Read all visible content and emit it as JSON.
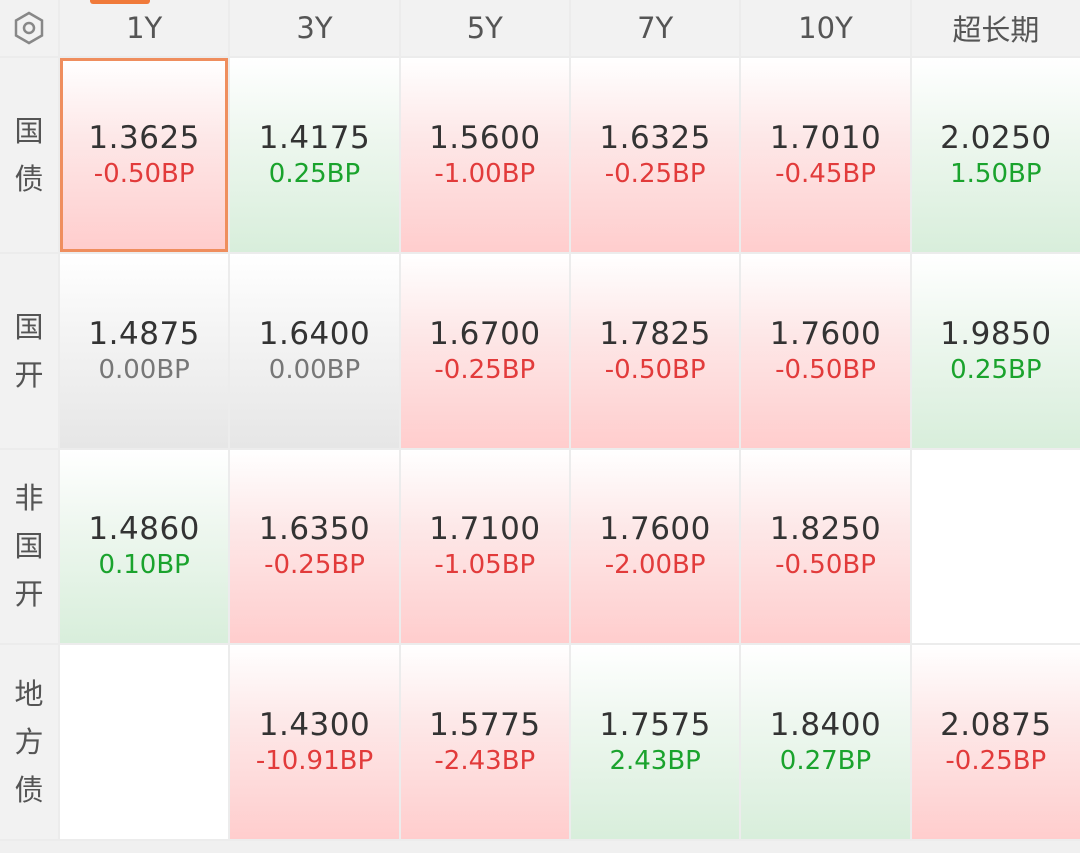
{
  "columns": [
    "1Y",
    "3Y",
    "5Y",
    "7Y",
    "10Y",
    "超长期"
  ],
  "colors": {
    "up": "#e23b3b",
    "down": "#1aa32d",
    "flat": "#777777",
    "selected_border": "#ef8e5e"
  },
  "corner_icon": "hexagon-settings-icon",
  "rows": [
    {
      "label": [
        "国",
        "债"
      ],
      "cells": [
        {
          "yield": "1.3625",
          "change": "-0.50BP",
          "trend": "up"
        },
        {
          "yield": "1.4175",
          "change": "0.25BP",
          "trend": "down"
        },
        {
          "yield": "1.5600",
          "change": "-1.00BP",
          "trend": "up"
        },
        {
          "yield": "1.6325",
          "change": "-0.25BP",
          "trend": "up"
        },
        {
          "yield": "1.7010",
          "change": "-0.45BP",
          "trend": "up"
        },
        {
          "yield": "2.0250",
          "change": "1.50BP",
          "trend": "down"
        }
      ]
    },
    {
      "label": [
        "国",
        "开"
      ],
      "cells": [
        {
          "yield": "1.4875",
          "change": "0.00BP",
          "trend": "flat"
        },
        {
          "yield": "1.6400",
          "change": "0.00BP",
          "trend": "flat"
        },
        {
          "yield": "1.6700",
          "change": "-0.25BP",
          "trend": "up"
        },
        {
          "yield": "1.7825",
          "change": "-0.50BP",
          "trend": "up"
        },
        {
          "yield": "1.7600",
          "change": "-0.50BP",
          "trend": "up"
        },
        {
          "yield": "1.9850",
          "change": "0.25BP",
          "trend": "down"
        }
      ]
    },
    {
      "label": [
        "非",
        "国",
        "开"
      ],
      "cells": [
        {
          "yield": "1.4860",
          "change": "0.10BP",
          "trend": "down"
        },
        {
          "yield": "1.6350",
          "change": "-0.25BP",
          "trend": "up"
        },
        {
          "yield": "1.7100",
          "change": "-1.05BP",
          "trend": "up"
        },
        {
          "yield": "1.7600",
          "change": "-2.00BP",
          "trend": "up"
        },
        {
          "yield": "1.8250",
          "change": "-0.50BP",
          "trend": "up"
        },
        {
          "yield": "",
          "change": "",
          "trend": "empty"
        }
      ]
    },
    {
      "label": [
        "地",
        "方",
        "债"
      ],
      "cells": [
        {
          "yield": "",
          "change": "",
          "trend": "empty"
        },
        {
          "yield": "1.4300",
          "change": "-10.91BP",
          "trend": "up"
        },
        {
          "yield": "1.5775",
          "change": "-2.43BP",
          "trend": "up"
        },
        {
          "yield": "1.7575",
          "change": "2.43BP",
          "trend": "down"
        },
        {
          "yield": "1.8400",
          "change": "0.27BP",
          "trend": "down"
        },
        {
          "yield": "2.0875",
          "change": "-0.25BP",
          "trend": "up"
        }
      ]
    }
  ]
}
